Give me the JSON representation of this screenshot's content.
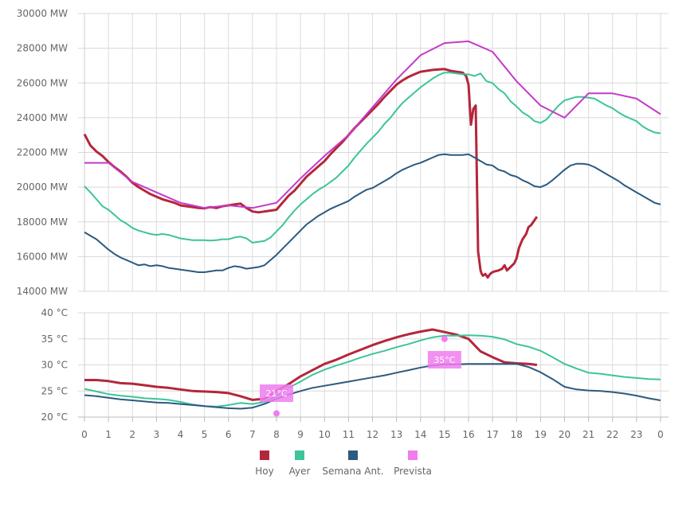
{
  "chart_data": [
    {
      "type": "line",
      "title": "",
      "unit": "MW",
      "ylim": [
        14000,
        30000
      ],
      "yticks": [
        "14000 MW",
        "16000 MW",
        "18000 MW",
        "20000 MW",
        "22000 MW",
        "24000 MW",
        "26000 MW",
        "28000 MW",
        "30000 MW"
      ],
      "ytick_values": [
        14000,
        16000,
        18000,
        20000,
        22000,
        24000,
        26000,
        28000,
        30000
      ],
      "xlim": [
        0,
        24
      ],
      "grid": true,
      "series": [
        {
          "name": "Hoy",
          "color": "#b5263b",
          "x": [
            0,
            0.25,
            0.5,
            0.75,
            1,
            1.25,
            1.5,
            1.75,
            2,
            2.25,
            2.5,
            2.75,
            3,
            3.25,
            3.5,
            3.75,
            4,
            4.25,
            4.5,
            4.75,
            5,
            5.25,
            5.5,
            5.75,
            6,
            6.25,
            6.5,
            6.75,
            7,
            7.25,
            7.5,
            7.75,
            8,
            8.25,
            8.5,
            8.75,
            9,
            9.25,
            9.5,
            9.75,
            10,
            10.25,
            10.5,
            10.75,
            11,
            11.25,
            11.5,
            11.75,
            12,
            12.25,
            12.5,
            12.75,
            13,
            13.25,
            13.5,
            13.75,
            14,
            14.25,
            14.5,
            14.75,
            15,
            15.25,
            15.5,
            15.75,
            15.9,
            16.0,
            16.1,
            16.2,
            16.3,
            16.4,
            16.5,
            16.55,
            16.6,
            16.7,
            16.8,
            16.9,
            17.0,
            17.1,
            17.25,
            17.4,
            17.5,
            17.6,
            17.75,
            17.9,
            18.0,
            18.1,
            18.25,
            18.4,
            18.5,
            18.6,
            18.75,
            18.85
          ],
          "y": [
            23050,
            22400,
            22050,
            21800,
            21450,
            21150,
            20900,
            20600,
            20250,
            20000,
            19800,
            19600,
            19450,
            19300,
            19200,
            19100,
            18950,
            18900,
            18850,
            18800,
            18780,
            18850,
            18800,
            18900,
            18950,
            19000,
            19050,
            18800,
            18600,
            18550,
            18600,
            18650,
            18700,
            19100,
            19500,
            19800,
            20200,
            20600,
            20900,
            21200,
            21500,
            21900,
            22250,
            22600,
            23000,
            23400,
            23750,
            24100,
            24450,
            24800,
            25200,
            25550,
            25900,
            26150,
            26350,
            26500,
            26650,
            26700,
            26750,
            26780,
            26800,
            26700,
            26650,
            26600,
            26400,
            25900,
            23600,
            24500,
            24700,
            16300,
            15200,
            15000,
            14900,
            15000,
            14800,
            15000,
            15100,
            15150,
            15200,
            15300,
            15500,
            15200,
            15400,
            15600,
            15900,
            16500,
            17000,
            17300,
            17700,
            17800,
            18100,
            18300
          ]
        },
        {
          "name": "Ayer",
          "color": "#3dc49a",
          "x": [
            0,
            0.25,
            0.5,
            0.75,
            1,
            1.25,
            1.5,
            1.75,
            2,
            2.25,
            2.5,
            2.75,
            3,
            3.25,
            3.5,
            3.75,
            4,
            4.25,
            4.5,
            4.75,
            5,
            5.25,
            5.5,
            5.75,
            6,
            6.25,
            6.5,
            6.75,
            7,
            7.25,
            7.5,
            7.75,
            8,
            8.25,
            8.5,
            8.75,
            9,
            9.25,
            9.5,
            9.75,
            10,
            10.25,
            10.5,
            10.75,
            11,
            11.25,
            11.5,
            11.75,
            12,
            12.25,
            12.5,
            12.75,
            13,
            13.25,
            13.5,
            13.75,
            14,
            14.25,
            14.5,
            14.75,
            15,
            15.25,
            15.5,
            15.75,
            16,
            16.25,
            16.5,
            16.75,
            17,
            17.25,
            17.5,
            17.75,
            18,
            18.25,
            18.5,
            18.75,
            19,
            19.25,
            19.5,
            19.75,
            20,
            20.25,
            20.5,
            20.75,
            21,
            21.25,
            21.5,
            21.75,
            22,
            22.25,
            22.5,
            22.75,
            23,
            23.25,
            23.5,
            23.75,
            24
          ],
          "y": [
            20050,
            19700,
            19300,
            18900,
            18700,
            18400,
            18100,
            17900,
            17650,
            17500,
            17400,
            17300,
            17250,
            17300,
            17250,
            17150,
            17050,
            17000,
            16950,
            16950,
            16950,
            16920,
            16950,
            17000,
            17000,
            17100,
            17150,
            17050,
            16800,
            16850,
            16900,
            17100,
            17450,
            17800,
            18250,
            18650,
            19000,
            19300,
            19600,
            19850,
            20050,
            20300,
            20550,
            20900,
            21250,
            21700,
            22100,
            22500,
            22850,
            23200,
            23650,
            24000,
            24450,
            24850,
            25150,
            25450,
            25750,
            26000,
            26250,
            26450,
            26600,
            26600,
            26550,
            26500,
            26500,
            26400,
            26550,
            26100,
            26000,
            25650,
            25400,
            24950,
            24650,
            24300,
            24100,
            23800,
            23700,
            23900,
            24300,
            24700,
            25000,
            25100,
            25200,
            25200,
            25150,
            25100,
            24900,
            24700,
            24550,
            24300,
            24100,
            23950,
            23800,
            23500,
            23300,
            23150,
            23100
          ]
        },
        {
          "name": "Semana Ant.",
          "color": "#2b5a80",
          "x": [
            0,
            0.25,
            0.5,
            0.75,
            1,
            1.25,
            1.5,
            1.75,
            2,
            2.25,
            2.5,
            2.75,
            3,
            3.25,
            3.5,
            3.75,
            4,
            4.25,
            4.5,
            4.75,
            5,
            5.25,
            5.5,
            5.75,
            6,
            6.25,
            6.5,
            6.75,
            7,
            7.25,
            7.5,
            7.75,
            8,
            8.25,
            8.5,
            8.75,
            9,
            9.25,
            9.5,
            9.75,
            10,
            10.25,
            10.5,
            10.75,
            11,
            11.25,
            11.5,
            11.75,
            12,
            12.25,
            12.5,
            12.75,
            13,
            13.25,
            13.5,
            13.75,
            14,
            14.25,
            14.5,
            14.75,
            15,
            15.25,
            15.5,
            15.75,
            16,
            16.25,
            16.5,
            16.75,
            17,
            17.25,
            17.5,
            17.75,
            18,
            18.25,
            18.5,
            18.75,
            19,
            19.25,
            19.5,
            19.75,
            20,
            20.25,
            20.5,
            20.75,
            21,
            21.25,
            21.5,
            21.75,
            22,
            22.25,
            22.5,
            22.75,
            23,
            23.25,
            23.5,
            23.75,
            24
          ],
          "y": [
            17400,
            17200,
            17000,
            16700,
            16400,
            16150,
            15950,
            15800,
            15650,
            15500,
            15550,
            15450,
            15500,
            15450,
            15350,
            15300,
            15250,
            15200,
            15150,
            15100,
            15100,
            15150,
            15200,
            15200,
            15350,
            15450,
            15400,
            15300,
            15350,
            15400,
            15500,
            15800,
            16100,
            16450,
            16800,
            17150,
            17500,
            17850,
            18100,
            18350,
            18550,
            18750,
            18900,
            19050,
            19200,
            19450,
            19650,
            19850,
            19950,
            20150,
            20350,
            20550,
            20800,
            21000,
            21150,
            21300,
            21400,
            21550,
            21700,
            21850,
            21900,
            21850,
            21850,
            21850,
            21900,
            21700,
            21500,
            21300,
            21250,
            21000,
            20900,
            20700,
            20600,
            20400,
            20250,
            20050,
            20000,
            20150,
            20400,
            20700,
            21000,
            21250,
            21350,
            21350,
            21300,
            21150,
            20950,
            20750,
            20550,
            20350,
            20100,
            19900,
            19700,
            19500,
            19300,
            19100,
            19000
          ]
        },
        {
          "name": "Prevista",
          "color": "#c43ac8",
          "x": [
            0,
            1,
            2,
            3,
            4,
            5,
            6,
            7,
            8,
            9,
            10,
            11,
            12,
            13,
            14,
            15,
            16,
            17,
            18,
            19,
            20,
            21,
            22,
            23,
            24
          ],
          "y": [
            21400,
            21400,
            20300,
            19700,
            19100,
            18800,
            18950,
            18800,
            19100,
            20500,
            21800,
            23000,
            24600,
            26200,
            27600,
            28300,
            28400,
            27800,
            26100,
            24700,
            24000,
            25400,
            25400,
            25100,
            24200
          ]
        }
      ]
    },
    {
      "type": "line",
      "title": "",
      "unit": "°C",
      "ylim": [
        20,
        40
      ],
      "yticks": [
        "20 °C",
        "25 °C",
        "30 °C",
        "35 °C",
        "40 °C"
      ],
      "ytick_values": [
        20,
        25,
        30,
        35,
        40
      ],
      "xlim": [
        0,
        24
      ],
      "xtick_labels": [
        "0",
        "1",
        "2",
        "3",
        "4",
        "5",
        "6",
        "7",
        "8",
        "9",
        "10",
        "11",
        "12",
        "13",
        "14",
        "15",
        "16",
        "17",
        "18",
        "19",
        "20",
        "21",
        "22",
        "23",
        "0"
      ],
      "grid": true,
      "series": [
        {
          "name": "Hoy",
          "color": "#b5263b",
          "x": [
            0,
            0.5,
            1,
            1.5,
            2,
            2.5,
            3,
            3.5,
            4,
            4.5,
            5,
            5.5,
            6,
            6.5,
            7,
            7.5,
            8,
            8.5,
            9,
            9.5,
            10,
            10.5,
            11,
            11.5,
            12,
            12.5,
            13,
            13.5,
            14,
            14.5,
            15,
            15.5,
            16,
            16.5,
            17,
            17.5,
            18,
            18.5,
            18.85
          ],
          "y": [
            27.1,
            27.1,
            26.9,
            26.5,
            26.4,
            26.1,
            25.8,
            25.6,
            25.3,
            25.0,
            24.9,
            24.8,
            24.6,
            24.0,
            23.3,
            23.5,
            25.0,
            26.3,
            27.8,
            29.0,
            30.2,
            31.0,
            32.0,
            32.9,
            33.8,
            34.6,
            35.3,
            35.9,
            36.4,
            36.8,
            36.3,
            35.8,
            35.0,
            32.6,
            31.5,
            30.5,
            30.3,
            30.2,
            30.0
          ]
        },
        {
          "name": "Ayer",
          "color": "#3dc49a",
          "x": [
            0,
            0.5,
            1,
            1.5,
            2,
            2.5,
            3,
            3.5,
            4,
            4.5,
            5,
            5.5,
            6,
            6.5,
            7,
            7.5,
            8,
            8.5,
            9,
            9.5,
            10,
            10.5,
            11,
            11.5,
            12,
            12.5,
            13,
            13.5,
            14,
            14.5,
            15,
            15.5,
            16,
            16.5,
            17,
            17.5,
            18,
            18.5,
            19,
            19.5,
            20,
            20.5,
            21,
            21.5,
            22,
            22.5,
            23,
            23.5,
            24
          ],
          "y": [
            25.4,
            24.9,
            24.4,
            24.1,
            23.9,
            23.6,
            23.5,
            23.3,
            22.9,
            22.4,
            22.1,
            22.0,
            22.3,
            22.7,
            22.5,
            22.9,
            24.0,
            25.6,
            26.8,
            28.1,
            29.1,
            29.9,
            30.6,
            31.4,
            32.1,
            32.7,
            33.4,
            34.0,
            34.7,
            35.3,
            35.6,
            35.6,
            35.7,
            35.6,
            35.4,
            34.9,
            34.0,
            33.5,
            32.7,
            31.5,
            30.2,
            29.3,
            28.5,
            28.3,
            28.0,
            27.7,
            27.5,
            27.3,
            27.2
          ]
        },
        {
          "name": "Semana Ant.",
          "color": "#2b5a80",
          "x": [
            0,
            0.5,
            1,
            1.5,
            2,
            2.5,
            3,
            3.5,
            4,
            4.5,
            5,
            5.5,
            6,
            6.5,
            7,
            7.5,
            8,
            8.5,
            9,
            9.5,
            10,
            10.5,
            11,
            11.5,
            12,
            12.5,
            13,
            13.5,
            14,
            14.5,
            15,
            15.5,
            16,
            16.5,
            17,
            17.5,
            18,
            18.5,
            19,
            19.5,
            20,
            20.5,
            21,
            21.5,
            22,
            22.5,
            23,
            23.5,
            24
          ],
          "y": [
            24.2,
            24.0,
            23.7,
            23.4,
            23.2,
            23.0,
            22.8,
            22.7,
            22.5,
            22.3,
            22.1,
            21.9,
            21.7,
            21.6,
            21.8,
            22.5,
            23.5,
            24.3,
            25.0,
            25.6,
            26.0,
            26.4,
            26.8,
            27.2,
            27.6,
            28.0,
            28.5,
            29.0,
            29.5,
            29.9,
            30.1,
            30.1,
            30.2,
            30.2,
            30.2,
            30.2,
            30.2,
            29.6,
            28.6,
            27.3,
            25.8,
            25.3,
            25.1,
            25.0,
            24.8,
            24.5,
            24.1,
            23.6,
            23.2
          ]
        }
      ],
      "forecast_points": {
        "name": "Prevista",
        "color": "#f07cf0",
        "points": [
          {
            "x": 8,
            "y": 20.7,
            "label": "21°C"
          },
          {
            "x": 15,
            "y": 35.0,
            "label": "35°C"
          }
        ]
      }
    }
  ],
  "legend": {
    "placement": "bottom-center",
    "items": [
      {
        "name": "Hoy",
        "color": "#b5263b"
      },
      {
        "name": "Ayer",
        "color": "#3dc49a"
      },
      {
        "name": "Semana Ant.",
        "color": "#2b5a80"
      },
      {
        "name": "Prevista",
        "color": "#f07cf0"
      }
    ]
  }
}
